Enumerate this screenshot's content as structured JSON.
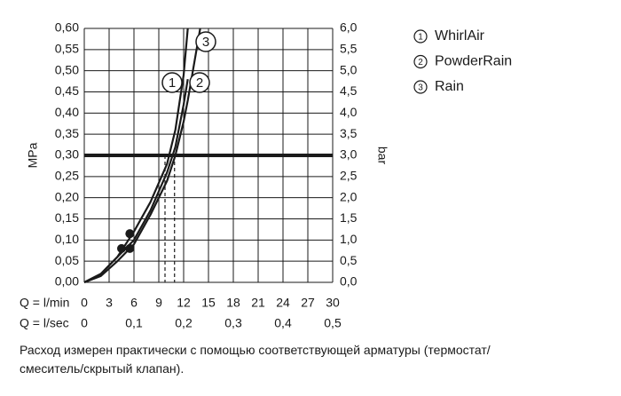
{
  "chart_data": {
    "type": "line",
    "y_label": "MPa",
    "y2_label": "bar",
    "x_label": "Q = l/min",
    "x2_label": "Q = l/sec",
    "xlim": [
      0,
      30
    ],
    "xticks": [
      0,
      3,
      6,
      9,
      12,
      15,
      18,
      21,
      24,
      27,
      30
    ],
    "x2lim": [
      0,
      0.5
    ],
    "x2ticks": [
      {
        "value": 0,
        "label": "0"
      },
      {
        "value": 0.1,
        "label": "0,1"
      },
      {
        "value": 0.2,
        "label": "0,2"
      },
      {
        "value": 0.3,
        "label": "0,3"
      },
      {
        "value": 0.4,
        "label": "0,4"
      },
      {
        "value": 0.5,
        "label": "0,5"
      }
    ],
    "ylim": [
      0,
      0.6
    ],
    "yticks": [
      {
        "value": 0,
        "label": "0,00"
      },
      {
        "value": 0.05,
        "label": "0,05"
      },
      {
        "value": 0.1,
        "label": "0,10"
      },
      {
        "value": 0.15,
        "label": "0,15"
      },
      {
        "value": 0.2,
        "label": "0,20"
      },
      {
        "value": 0.25,
        "label": "0,25"
      },
      {
        "value": 0.3,
        "label": "0,30"
      },
      {
        "value": 0.35,
        "label": "0,35"
      },
      {
        "value": 0.4,
        "label": "0,40"
      },
      {
        "value": 0.45,
        "label": "0,45"
      },
      {
        "value": 0.5,
        "label": "0,50"
      },
      {
        "value": 0.55,
        "label": "0,55"
      },
      {
        "value": 0.6,
        "label": "0,60"
      }
    ],
    "y2lim": [
      0,
      6
    ],
    "y2ticks": [
      {
        "value": 0,
        "label": "0,0"
      },
      {
        "value": 0.5,
        "label": "0,5"
      },
      {
        "value": 1,
        "label": "1,0"
      },
      {
        "value": 1.5,
        "label": "1,5"
      },
      {
        "value": 2,
        "label": "2,0"
      },
      {
        "value": 2.5,
        "label": "2,5"
      },
      {
        "value": 3,
        "label": "3,0"
      },
      {
        "value": 3.5,
        "label": "3,5"
      },
      {
        "value": 4,
        "label": "4,0"
      },
      {
        "value": 4.5,
        "label": "4,5"
      },
      {
        "value": 5,
        "label": "5,0"
      },
      {
        "value": 5.5,
        "label": "5,5"
      },
      {
        "value": 6,
        "label": "6,0"
      }
    ],
    "grid": true,
    "x": [
      0,
      2,
      4,
      6,
      8,
      10,
      11,
      12,
      12.5,
      14
    ],
    "series": [
      {
        "id": "1",
        "name": "WhirlAir",
        "color": "#1a1a1a",
        "values": [
          0,
          0.02,
          0.06,
          0.12,
          0.19,
          0.28,
          0.36,
          0.49,
          0.6,
          null
        ]
      },
      {
        "id": "2",
        "name": "PowderRain",
        "color": "#1a1a1a",
        "values": [
          0,
          0.015,
          0.05,
          0.09,
          0.16,
          0.24,
          0.3,
          0.38,
          0.43,
          0.6
        ]
      },
      {
        "id": "3",
        "name": "Rain",
        "color": "#1a1a1a",
        "values": [
          0,
          0.02,
          0.06,
          0.1,
          0.17,
          0.26,
          0.32,
          0.42,
          0.48,
          null
        ]
      }
    ],
    "markers": {
      "x": [
        4.5,
        5.5,
        5.5
      ],
      "y": [
        0.08,
        0.08,
        0.115
      ]
    },
    "reference_line": 0.3,
    "reference_x": [
      9.75,
      10.9
    ],
    "note": [
      "Расход измерен практически с помощью соответствующей арматуры (термостат/",
      "смеситель/скрытый клапан)."
    ]
  }
}
